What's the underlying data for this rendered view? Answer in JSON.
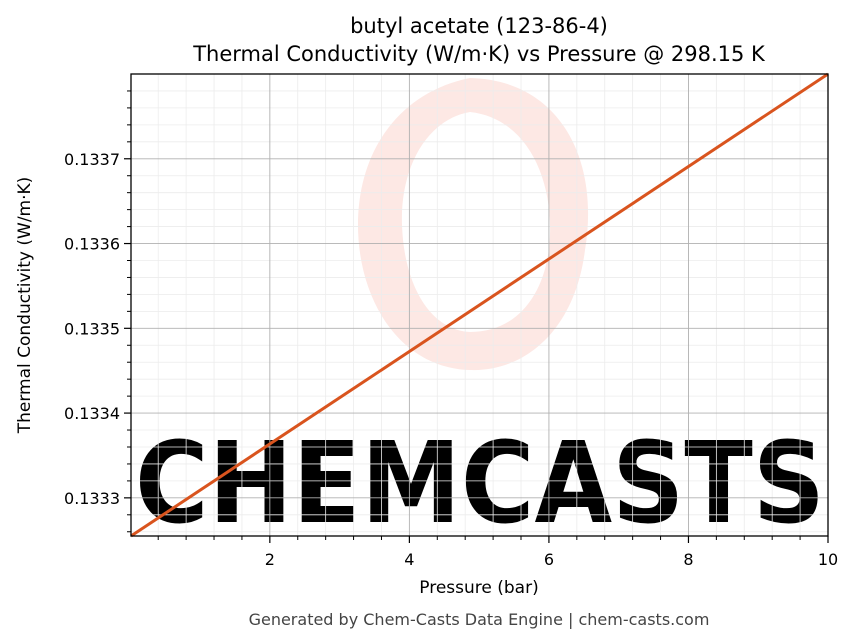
{
  "chart_data": {
    "type": "line",
    "title": "butyl acetate (123-86-4)",
    "subtitle": "Thermal Conductivity (W/m·K) vs Pressure @ 298.15 K",
    "xlabel": "Pressure (bar)",
    "ylabel": "Thermal Conductivity (W/m·K)",
    "xlim": [
      0.01,
      10
    ],
    "ylim": [
      0.133255,
      0.1338
    ],
    "x_ticks": [
      2,
      4,
      6,
      8,
      10
    ],
    "x_tick_labels": [
      "2",
      "4",
      "6",
      "8",
      "10"
    ],
    "y_ticks": [
      0.1333,
      0.1334,
      0.1335,
      0.1336,
      0.1337
    ],
    "y_tick_labels": [
      "0.1333",
      "0.1334",
      "0.1335",
      "0.1336",
      "0.1337"
    ],
    "grid": true,
    "series": [
      {
        "color": "#d9541e",
        "x": [
          0.01,
          10
        ],
        "y": [
          0.133255,
          0.1338
        ]
      }
    ]
  },
  "watermark": {
    "text": "CHEMCASTS",
    "color": "#fde3df"
  },
  "footer": "Generated by Chem-Casts Data Engine | chem-casts.com"
}
